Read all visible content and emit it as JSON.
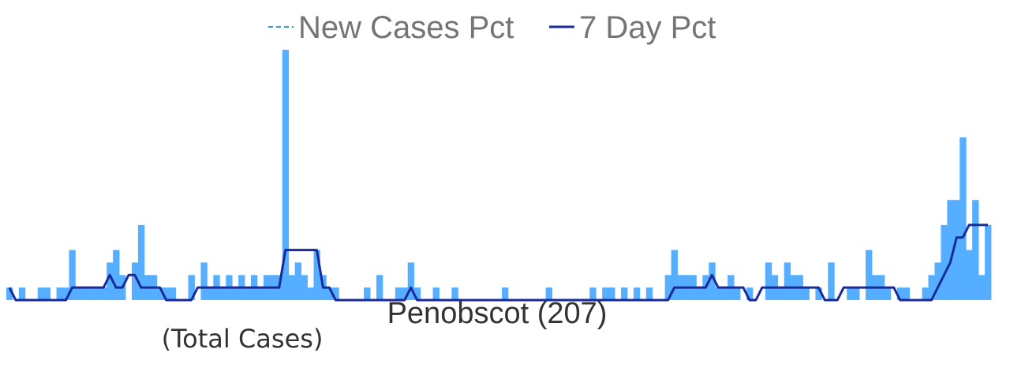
{
  "chart_data": {
    "type": "bar",
    "title": "Penobscot (207)",
    "subtitle": "(Total Cases)",
    "legend": {
      "position": "top-center",
      "entries": [
        {
          "name": "New Cases Pct",
          "style": "dashed",
          "color": "#2E9BD6"
        },
        {
          "name": "7 Day Pct",
          "style": "solid",
          "color": "#1A2A9A"
        }
      ]
    },
    "grid": false,
    "axes_visible": false,
    "ylim": [
      0,
      20
    ],
    "x": [
      0,
      1,
      2,
      3,
      4,
      5,
      6,
      7,
      8,
      9,
      10,
      11,
      12,
      13,
      14,
      15,
      16,
      17,
      18,
      19,
      20,
      21,
      22,
      23,
      24,
      25,
      26,
      27,
      28,
      29,
      30,
      31,
      32,
      33,
      34,
      35,
      36,
      37,
      38,
      39,
      40,
      41,
      42,
      43,
      44,
      45,
      46,
      47,
      48,
      49,
      50,
      51,
      52,
      53,
      54,
      55,
      56,
      57,
      58,
      59,
      60,
      61,
      62,
      63,
      64,
      65,
      66,
      67,
      68,
      69,
      70,
      71,
      72,
      73,
      74,
      75,
      76,
      77,
      78,
      79,
      80,
      81,
      82,
      83,
      84,
      85,
      86,
      87,
      88,
      89,
      90,
      91,
      92,
      93,
      94,
      95,
      96,
      97,
      98,
      99,
      100,
      101,
      102,
      103,
      104,
      105,
      106,
      107,
      108,
      109,
      110,
      111,
      112,
      113,
      114,
      115,
      116,
      117,
      118,
      119,
      120,
      121,
      122,
      123,
      124,
      125,
      126,
      127,
      128,
      129,
      130,
      131,
      132,
      133,
      134,
      135,
      136,
      137,
      138,
      139,
      140,
      141,
      142,
      143,
      144,
      145,
      146,
      147,
      148,
      149,
      150,
      151,
      152,
      153,
      154,
      155,
      156
    ],
    "series": [
      {
        "name": "New Cases Pct",
        "color": "#55AEFF",
        "values": [
          1,
          0,
          1,
          0,
          0,
          1,
          1,
          0,
          1,
          1,
          4,
          1,
          1,
          1,
          1,
          1,
          3,
          4,
          2,
          0,
          3,
          6,
          2,
          2,
          1,
          1,
          1,
          0,
          0,
          2,
          0,
          3,
          1,
          2,
          1,
          2,
          1,
          2,
          1,
          2,
          1,
          2,
          2,
          2,
          20,
          2,
          3,
          2,
          1,
          4,
          2,
          1,
          1,
          0,
          0,
          0,
          0,
          1,
          0,
          2,
          0,
          0,
          1,
          1,
          3,
          1,
          0,
          0,
          1,
          0,
          0,
          1,
          0,
          0,
          0,
          0,
          0,
          0,
          0,
          1,
          0,
          0,
          0,
          0,
          0,
          0,
          1,
          0,
          0,
          0,
          0,
          0,
          0,
          1,
          0,
          1,
          1,
          0,
          1,
          0,
          1,
          0,
          1,
          0,
          0,
          2,
          4,
          2,
          2,
          2,
          1,
          2,
          3,
          1,
          1,
          2,
          1,
          0,
          1,
          0,
          0,
          3,
          2,
          1,
          3,
          2,
          2,
          1,
          0,
          1,
          0,
          3,
          0,
          0,
          1,
          1,
          0,
          4,
          2,
          2,
          1,
          0,
          1,
          1,
          0,
          0,
          1,
          2,
          3,
          6,
          8,
          8,
          13,
          4,
          8,
          2,
          6
        ]
      },
      {
        "name": "7 Day Pct",
        "color": "#1A2A9A",
        "values": [
          1,
          0,
          0,
          0,
          0,
          0,
          0,
          0,
          0,
          0,
          1,
          1,
          1,
          1,
          1,
          1,
          2,
          1,
          1,
          2,
          2,
          1,
          1,
          1,
          1,
          0,
          0,
          0,
          0,
          0,
          1,
          1,
          1,
          1,
          1,
          1,
          1,
          1,
          1,
          1,
          1,
          1,
          1,
          1,
          4,
          4,
          4,
          4,
          4,
          4,
          1,
          1,
          0,
          0,
          0,
          0,
          0,
          0,
          0,
          0,
          0,
          0,
          0,
          0,
          1,
          0,
          0,
          0,
          0,
          0,
          0,
          0,
          0,
          0,
          0,
          0,
          0,
          0,
          0,
          0,
          0,
          0,
          0,
          0,
          0,
          0,
          0,
          0,
          0,
          0,
          0,
          0,
          0,
          0,
          0,
          0,
          0,
          0,
          0,
          0,
          0,
          0,
          0,
          0,
          0,
          0,
          1,
          1,
          1,
          1,
          1,
          1,
          2,
          1,
          1,
          1,
          1,
          1,
          0,
          0,
          1,
          1,
          1,
          1,
          1,
          1,
          1,
          1,
          1,
          1,
          0,
          0,
          0,
          1,
          1,
          1,
          1,
          1,
          1,
          1,
          1,
          1,
          0,
          0,
          0,
          0,
          0,
          0,
          1,
          2,
          3,
          5,
          5,
          6,
          6,
          6,
          6
        ]
      }
    ]
  }
}
